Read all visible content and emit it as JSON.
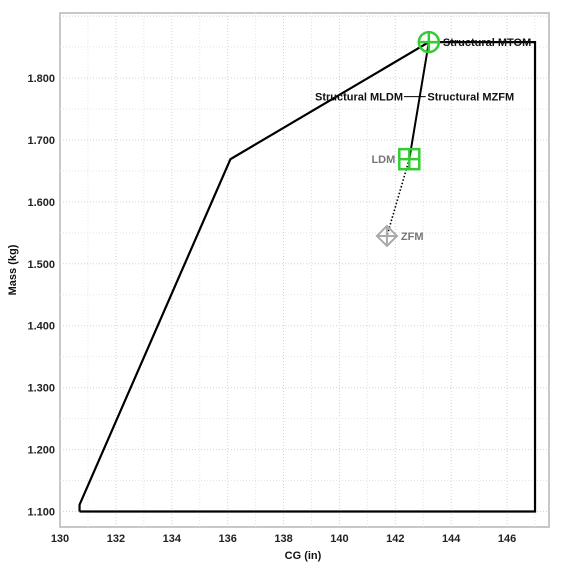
{
  "chart_data": {
    "type": "line",
    "title": "",
    "xlabel": "CG (in)",
    "ylabel": "Mass (kg)",
    "xlim": [
      130,
      147.5
    ],
    "ylim": [
      1.075,
      1.905
    ],
    "x_ticks": [
      130,
      132,
      134,
      136,
      138,
      140,
      142,
      144,
      146
    ],
    "x_tick_labels": [
      "130",
      "132",
      "134",
      "136",
      "138",
      "140",
      "142",
      "144",
      "146"
    ],
    "y_ticks": [
      1.1,
      1.2,
      1.3,
      1.4,
      1.5,
      1.6,
      1.7,
      1.8
    ],
    "y_tick_labels": [
      "1.100",
      "1.200",
      "1.300",
      "1.400",
      "1.500",
      "1.600",
      "1.700",
      "1.800"
    ],
    "grid": true,
    "envelope": {
      "points": [
        {
          "x": 130.7,
          "y": 1.1
        },
        {
          "x": 147.0,
          "y": 1.1
        },
        {
          "x": 147.0,
          "y": 1.858
        },
        {
          "x": 143.2,
          "y": 1.858
        },
        {
          "x": 136.1,
          "y": 1.669
        },
        {
          "x": 130.7,
          "y": 1.111
        },
        {
          "x": 130.7,
          "y": 1.1
        }
      ],
      "color": "#000000"
    },
    "loading_path": {
      "solid": [
        {
          "x": 143.2,
          "y": 1.858
        },
        {
          "x": 142.5,
          "y": 1.669
        }
      ],
      "dotted": [
        {
          "x": 142.5,
          "y": 1.669
        },
        {
          "x": 141.7,
          "y": 1.545
        }
      ]
    },
    "markers": [
      {
        "name": "MTOM",
        "x": 143.2,
        "y": 1.858,
        "shape": "circle-cross",
        "color": "#33cc33",
        "label": "Structural MTOM"
      },
      {
        "name": "LDM",
        "x": 142.5,
        "y": 1.669,
        "shape": "square-cross",
        "color": "#33cc33",
        "label": "LDM"
      },
      {
        "name": "ZFM",
        "x": 141.7,
        "y": 1.545,
        "shape": "diamond-cross",
        "color": "#aaaaaa",
        "label": "ZFM"
      }
    ],
    "annotations": [
      {
        "text": "Structural MLDM",
        "x": 140.7,
        "y": 1.77
      },
      {
        "text": "Structural MZFM",
        "x": 144.7,
        "y": 1.77
      }
    ]
  }
}
